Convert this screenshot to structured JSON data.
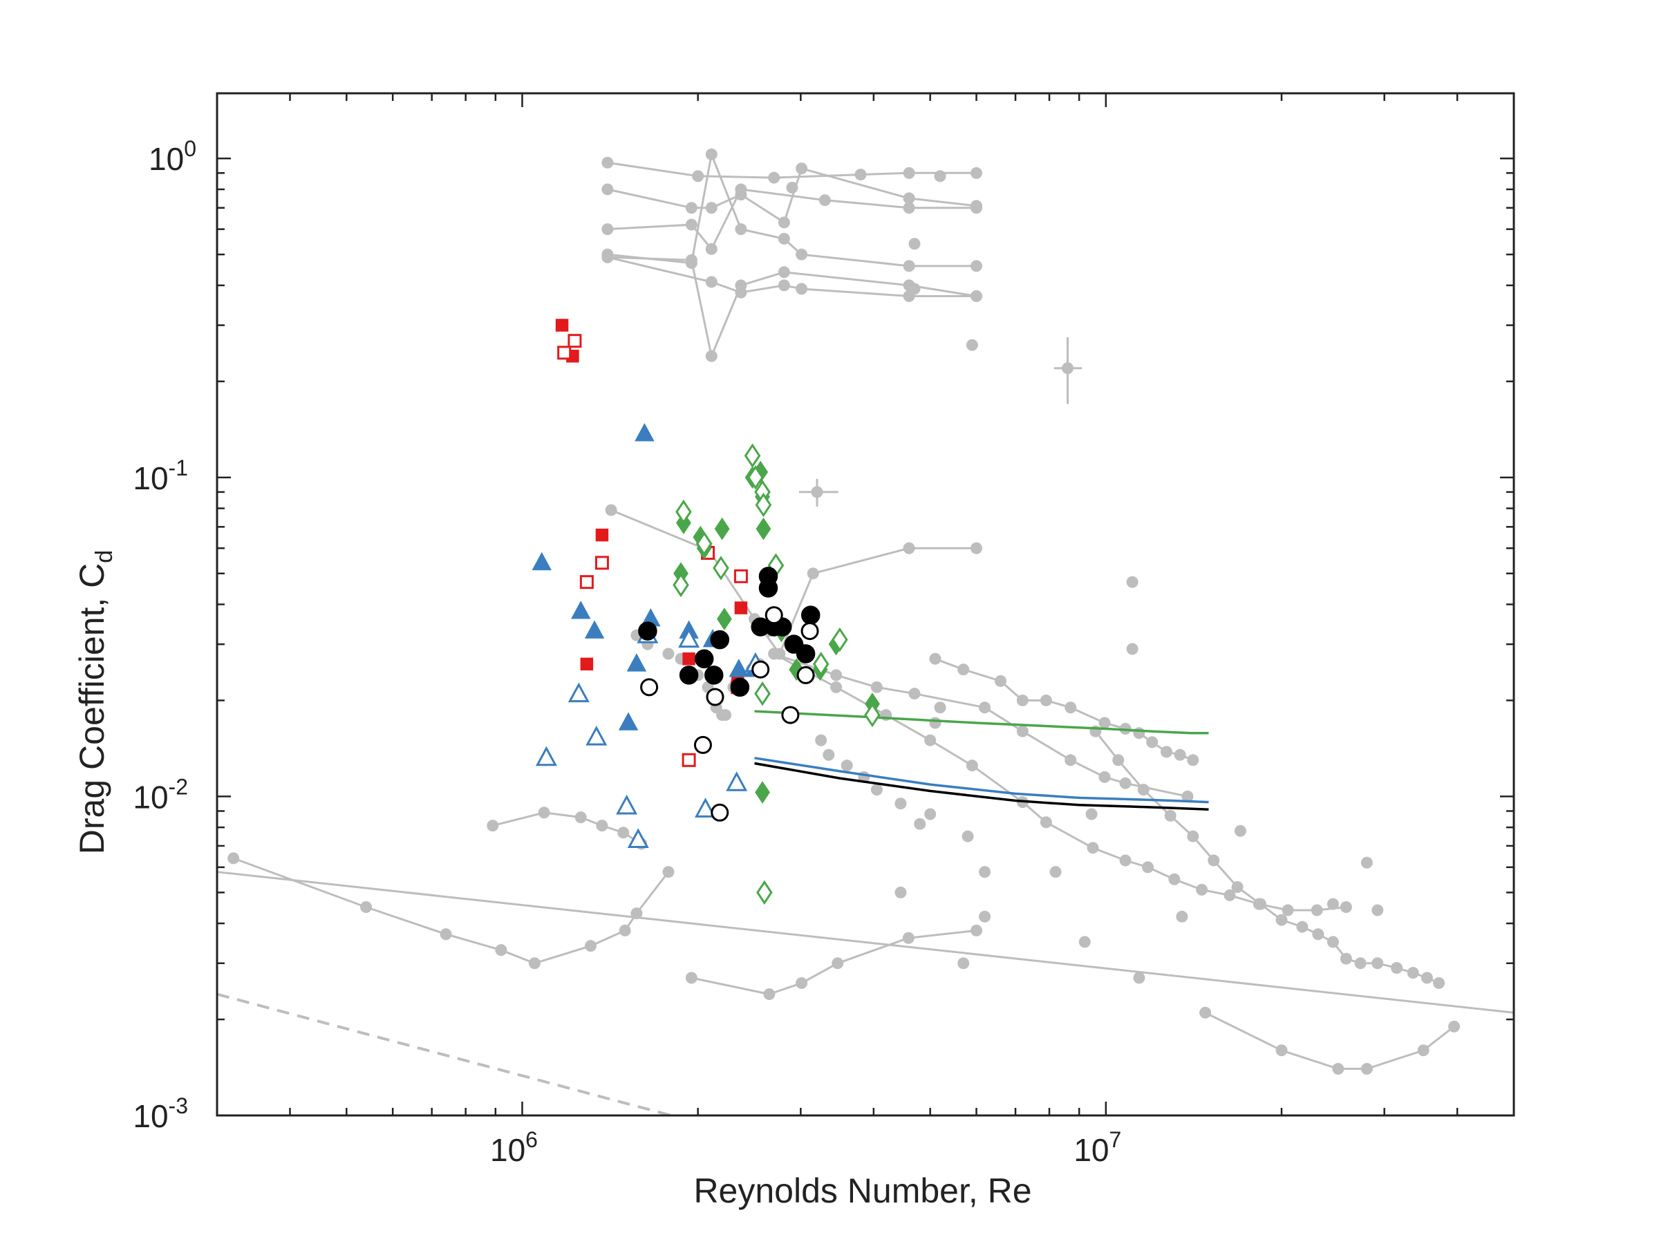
{
  "chart_data": {
    "type": "scatter",
    "title": "",
    "xlabel": "Reynolds Number, Re",
    "ylabel_main": "Drag Coefficient, C",
    "ylabel_sub": "d",
    "xscale": "log",
    "yscale": "log",
    "xlim": [
      300000,
      50000000
    ],
    "ylim": [
      0.001,
      1.6
    ],
    "grid": false,
    "legend": "none",
    "x_tick_labels": [
      {
        "value": 1000000,
        "base": "10",
        "exp": "6"
      },
      {
        "value": 10000000,
        "base": "10",
        "exp": "7"
      }
    ],
    "y_tick_labels": [
      {
        "value": 0.001,
        "base": "10",
        "exp": "-3"
      },
      {
        "value": 0.01,
        "base": "10",
        "exp": "-2"
      },
      {
        "value": 0.1,
        "base": "10",
        "exp": "-1"
      },
      {
        "value": 1,
        "base": "10",
        "exp": "0"
      }
    ],
    "colors": {
      "gray": "#bdbdbd",
      "red": "#e31a1c",
      "blue": "#3a7ebf",
      "green": "#4aa64a",
      "black": "#000000",
      "axis": "#222222"
    },
    "gray_lines": [
      {
        "x": [
          300000,
          50000000
        ],
        "y": [
          0.0058,
          0.0021
        ]
      },
      {
        "x": [
          320000,
          540000,
          740000,
          920000,
          1050000,
          1310000,
          1500000,
          1570000,
          1780000
        ],
        "y": [
          0.0064,
          0.0045,
          0.0037,
          0.0033,
          0.003,
          0.0034,
          0.0038,
          0.0043,
          0.0058
        ]
      },
      {
        "x": [
          890000,
          1090000,
          1260000,
          1370000,
          1490000,
          1600000
        ],
        "y": [
          0.0081,
          0.0089,
          0.0086,
          0.0081,
          0.0077,
          0.0071
        ]
      },
      {
        "x": [
          1950000,
          2650000,
          3010000,
          3470000,
          4590000,
          6000000
        ],
        "y": [
          0.0027,
          0.0024,
          0.0026,
          0.003,
          0.0036,
          0.0038
        ]
      },
      {
        "x": [
          14800000,
          20000000,
          25000000,
          28000000,
          35000000,
          39500000
        ],
        "y": [
          0.0021,
          0.0016,
          0.0014,
          0.0014,
          0.0016,
          0.0019
        ]
      },
      {
        "x": [
          1400000,
          2000000,
          2700000,
          3800000,
          4600000,
          6000000
        ],
        "y": [
          0.97,
          0.88,
          0.87,
          0.89,
          0.9,
          0.9
        ]
      },
      {
        "x": [
          1400000,
          1950000,
          2110000,
          2370000,
          2810000,
          3010000,
          4600000,
          6000000
        ],
        "y": [
          0.8,
          0.7,
          0.7,
          0.77,
          0.63,
          0.93,
          0.75,
          0.71
        ]
      },
      {
        "x": [
          1400000,
          1950000,
          2110000,
          2370000,
          3300000,
          4600000,
          6000000
        ],
        "y": [
          0.6,
          0.62,
          0.52,
          0.8,
          0.74,
          0.7,
          0.7
        ]
      },
      {
        "x": [
          1400000,
          1950000,
          2110000,
          2370000,
          2810000,
          3010000,
          4600000,
          6000000
        ],
        "y": [
          0.5,
          0.47,
          1.03,
          0.6,
          0.56,
          0.5,
          0.46,
          0.46
        ]
      },
      {
        "x": [
          1400000,
          1950000,
          2110000,
          2370000,
          2810000,
          4600000,
          6000000
        ],
        "y": [
          0.49,
          0.48,
          0.24,
          0.4,
          0.44,
          0.4,
          0.37
        ]
      },
      {
        "x": [
          1400000,
          2110000,
          2370000,
          2810000,
          3010000,
          4600000,
          6000000
        ],
        "y": [
          0.49,
          0.41,
          0.38,
          0.4,
          0.39,
          0.37,
          0.37
        ]
      },
      {
        "x": [
          1420000,
          2090000,
          2500000,
          2760000,
          3150000,
          4600000,
          6000000
        ],
        "y": [
          0.079,
          0.059,
          0.036,
          0.028,
          0.05,
          0.06,
          0.06
        ]
      },
      {
        "x": [
          2700000,
          3450000,
          4050000,
          4700000,
          6200000,
          7200000,
          8700000,
          9950000,
          10800000,
          13800000
        ],
        "y": [
          0.028,
          0.024,
          0.022,
          0.021,
          0.019,
          0.016,
          0.013,
          0.0115,
          0.011,
          0.01
        ]
      },
      {
        "x": [
          5100000,
          5700000,
          6600000,
          7200000,
          7900000,
          8700000,
          9950000,
          10800000,
          11400000,
          12000000,
          12700000,
          13400000,
          14100000
        ],
        "y": [
          0.027,
          0.025,
          0.023,
          0.02,
          0.02,
          0.019,
          0.017,
          0.0163,
          0.0158,
          0.0148,
          0.0138,
          0.0135,
          0.013
        ]
      },
      {
        "x": [
          2700000,
          3450000,
          4200000,
          5000000,
          5900000,
          7200000,
          7900000,
          9500000,
          10800000,
          11800000,
          13100000,
          14600000,
          16300000,
          18300000,
          20500000,
          23000000,
          25800000
        ],
        "y": [
          0.028,
          0.022,
          0.018,
          0.015,
          0.0125,
          0.0096,
          0.0083,
          0.0069,
          0.0063,
          0.006,
          0.0055,
          0.0051,
          0.0049,
          0.0046,
          0.0044,
          0.0044,
          0.0045
        ]
      },
      {
        "x": [
          9600000,
          10500000,
          11600000,
          12900000,
          14100000,
          15300000,
          16800000,
          18400000,
          20000000,
          21700000,
          23100000,
          24500000,
          25800000,
          27300000,
          29200000,
          31500000,
          33600000,
          35500000,
          37200000
        ],
        "y": [
          0.016,
          0.013,
          0.0105,
          0.0087,
          0.0075,
          0.0063,
          0.0052,
          0.0046,
          0.0041,
          0.0039,
          0.0037,
          0.0035,
          0.0031,
          0.003,
          0.003,
          0.0029,
          0.0028,
          0.0027,
          0.0026
        ]
      }
    ],
    "gray_points": {
      "x": [
        1570000,
        1640000,
        1780000,
        1870000,
        2000000,
        2080000,
        2150000,
        2200000,
        2230000,
        2300000,
        2470000,
        2550000,
        2650000,
        3010000,
        3250000,
        3350000,
        3600000,
        3850000,
        4050000,
        4450000,
        4800000,
        5000000,
        5100000,
        5200000,
        5800000,
        4450000,
        5700000,
        6200000,
        6200000,
        8200000,
        9200000,
        9450000,
        11100000,
        11100000,
        11400000,
        13500000,
        17000000,
        28000000,
        29200000,
        24500000,
        4700000,
        4700000,
        5200000,
        2900000,
        5900000
      ],
      "y": [
        0.032,
        0.03,
        0.028,
        0.027,
        0.024,
        0.022,
        0.019,
        0.018,
        0.018,
        0.022,
        0.025,
        0.026,
        0.033,
        0.029,
        0.015,
        0.0135,
        0.0125,
        0.0115,
        0.0105,
        0.0095,
        0.0082,
        0.0088,
        0.017,
        0.019,
        0.0075,
        0.005,
        0.003,
        0.0042,
        0.0058,
        0.0058,
        0.0035,
        0.0088,
        0.047,
        0.029,
        0.0027,
        0.0042,
        0.0078,
        0.0062,
        0.0044,
        0.0046,
        0.54,
        0.39,
        0.88,
        0.81,
        0.26
      ]
    },
    "gray_errorbars": [
      {
        "x": 3200000,
        "y": 0.09,
        "xerr": [
          2980000,
          3480000
        ],
        "yerr": [
          0.081,
          0.099
        ]
      },
      {
        "x": 8600000,
        "y": 0.22,
        "xerr": [
          8150000,
          9100000
        ],
        "yerr": [
          0.17,
          0.275
        ]
      }
    ],
    "gray_dashed_line": {
      "x": [
        300000,
        1800000
      ],
      "y": [
        0.0024,
        0.001
      ]
    },
    "series": [
      {
        "marker": "filled-square",
        "color": "red",
        "x": [
          1170000,
          1220000,
          1370000,
          1290000,
          1930000,
          2370000,
          2340000
        ],
        "y": [
          0.3,
          0.24,
          0.066,
          0.026,
          0.027,
          0.039,
          0.023
        ]
      },
      {
        "marker": "open-square",
        "color": "red",
        "x": [
          1180000,
          1230000,
          1290000,
          1370000,
          1930000,
          2080000,
          2370000,
          2340000
        ],
        "y": [
          0.246,
          0.268,
          0.047,
          0.054,
          0.013,
          0.058,
          0.049,
          0.022
        ]
      },
      {
        "marker": "filled-triangle",
        "color": "blue",
        "x": [
          1080000,
          1260000,
          1330000,
          1520000,
          1570000,
          1660000,
          1620000,
          1930000,
          2120000,
          2350000,
          2500000
        ],
        "y": [
          0.054,
          0.038,
          0.033,
          0.017,
          0.026,
          0.036,
          0.137,
          0.033,
          0.031,
          0.025,
          0.025
        ]
      },
      {
        "marker": "open-triangle",
        "color": "blue",
        "x": [
          1100000,
          1250000,
          1340000,
          1510000,
          1580000,
          1640000,
          1930000,
          2060000,
          2330000,
          2510000
        ],
        "y": [
          0.0132,
          0.0209,
          0.0153,
          0.0093,
          0.0073,
          0.032,
          0.031,
          0.0091,
          0.011,
          0.026
        ]
      },
      {
        "marker": "filled-diamond",
        "color": "green",
        "x": [
          1890000,
          1870000,
          2020000,
          2050000,
          2200000,
          2220000,
          2480000,
          2560000,
          2580000,
          2590000,
          2780000,
          2950000,
          3240000,
          3450000,
          3980000,
          2580000
        ],
        "y": [
          0.072,
          0.05,
          0.065,
          0.06,
          0.069,
          0.036,
          0.1,
          0.104,
          0.087,
          0.069,
          0.033,
          0.025,
          0.025,
          0.03,
          0.0195,
          0.0103
        ]
      },
      {
        "marker": "open-diamond",
        "color": "green",
        "x": [
          1890000,
          1870000,
          2050000,
          2190000,
          2480000,
          2510000,
          2580000,
          2590000,
          2720000,
          3250000,
          3500000,
          3980000,
          2580000,
          2600000
        ],
        "y": [
          0.078,
          0.046,
          0.062,
          0.052,
          0.117,
          0.1,
          0.09,
          0.082,
          0.053,
          0.026,
          0.031,
          0.018,
          0.021,
          0.005
        ]
      },
      {
        "marker": "filled-circle",
        "color": "black",
        "x": [
          1640000,
          1930000,
          2050000,
          2130000,
          2180000,
          2360000,
          2560000,
          2640000,
          2700000,
          2790000,
          2920000,
          3060000,
          3120000,
          2640000
        ],
        "y": [
          0.033,
          0.024,
          0.027,
          0.024,
          0.031,
          0.022,
          0.034,
          0.045,
          0.034,
          0.034,
          0.03,
          0.028,
          0.037,
          0.049
        ]
      },
      {
        "marker": "open-circle",
        "color": "black",
        "x": [
          1650000,
          2040000,
          2140000,
          2180000,
          2560000,
          2700000,
          2880000,
          3060000,
          3110000
        ],
        "y": [
          0.022,
          0.0145,
          0.0205,
          0.0089,
          0.025,
          0.037,
          0.018,
          0.024,
          0.033
        ]
      }
    ],
    "model_curves": [
      {
        "color": "green",
        "x": [
          2500000,
          4000000,
          6000000,
          8000000,
          10000000,
          12000000,
          14000000,
          15000000
        ],
        "y": [
          0.0185,
          0.0177,
          0.017,
          0.0166,
          0.0163,
          0.016,
          0.0158,
          0.0158
        ]
      },
      {
        "color": "blue",
        "x": [
          2500000,
          3500000,
          5000000,
          7000000,
          9000000,
          11000000,
          13000000,
          15000000
        ],
        "y": [
          0.0132,
          0.012,
          0.0109,
          0.0102,
          0.0099,
          0.0098,
          0.0097,
          0.0096
        ]
      },
      {
        "color": "black",
        "x": [
          2500000,
          3500000,
          5000000,
          7000000,
          9000000,
          11000000,
          13000000,
          15000000
        ],
        "y": [
          0.0127,
          0.0114,
          0.0104,
          0.0097,
          0.0094,
          0.0093,
          0.0092,
          0.0091
        ]
      }
    ]
  }
}
